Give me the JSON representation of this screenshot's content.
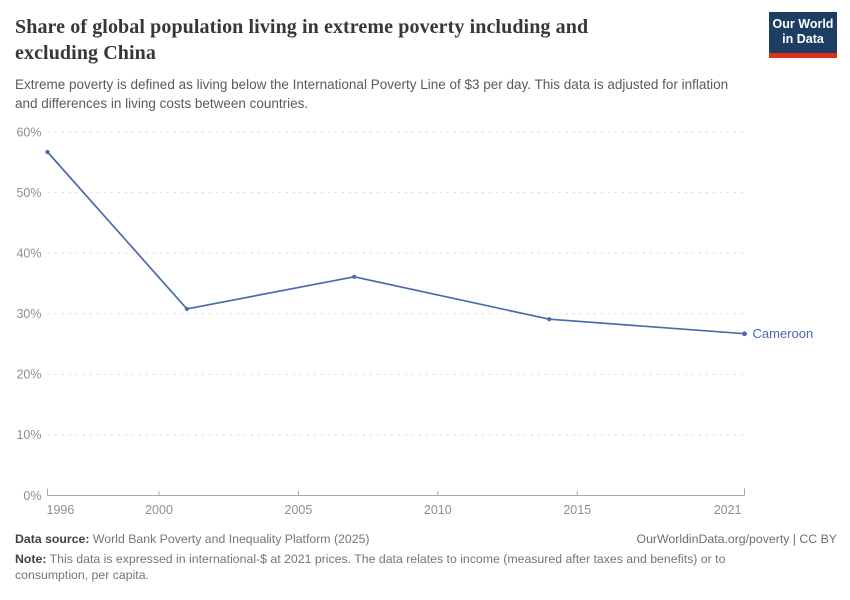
{
  "header": {
    "title_lines": [
      "Share of global population living in extreme poverty including and",
      "excluding China"
    ],
    "subtitle_lines": [
      "Extreme poverty is defined as living below the International Poverty Line of $3 per day. This data is adjusted for inflation",
      "and differences in living costs between countries."
    ]
  },
  "logo": {
    "line1": "Our World",
    "line2": "in Data",
    "bg_color": "#1d3d63",
    "bar_color": "#e0301e"
  },
  "chart_data": {
    "type": "line",
    "title": "Share of global population living in extreme poverty including and excluding China",
    "xlabel": "",
    "ylabel": "",
    "xlim": [
      1996,
      2021
    ],
    "ylim": [
      0,
      60
    ],
    "x_ticks": [
      1996,
      2000,
      2005,
      2010,
      2015,
      2021
    ],
    "y_ticks": [
      0,
      10,
      20,
      30,
      40,
      50,
      60
    ],
    "y_tick_suffix": "%",
    "grid": "horizontal-dashed",
    "legend_position": "end-of-line-label",
    "series": [
      {
        "name": "Cameroon",
        "color": "#4b6aa8",
        "x": [
          1996,
          2001,
          2007,
          2014,
          2021
        ],
        "values": [
          56.7,
          30.8,
          36.1,
          29.1,
          26.7
        ]
      }
    ]
  },
  "footer": {
    "source_label": "Data source:",
    "source_text": " World Bank Poverty and Inequality Platform (2025)",
    "link_text": "OurWorldinData.org/poverty | CC BY",
    "note_label": "Note:",
    "note_lines": [
      " This data is expressed in international-$ at 2021 prices. The data relates to income (measured after taxes and benefits) or to",
      "consumption, per capita."
    ]
  },
  "colors": {
    "background": "#ffffff",
    "title": "#373737",
    "subtitle": "#5a5a5a",
    "tick_label": "#8e8e8e",
    "gridline": "#dedede",
    "axis_line": "#a8a8a8",
    "series_line": "#4b6aa8"
  }
}
